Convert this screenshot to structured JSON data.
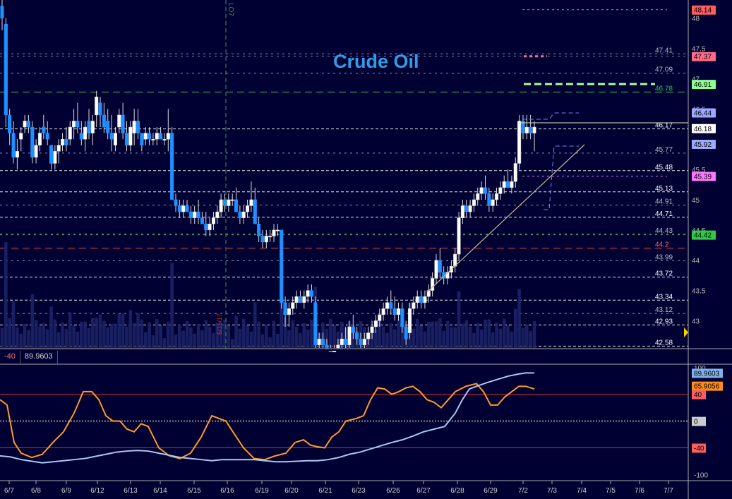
{
  "chart_data": {
    "type": "candlestick",
    "title": "Crude Oil",
    "marker_label": "LO7",
    "date_marker_label": "6/15/17",
    "x_labels": [
      "6/7",
      "6/8",
      "6/9",
      "6/12",
      "6/13",
      "6/14",
      "6/15",
      "6/16",
      "6/19",
      "6/20",
      "6/21",
      "6/23",
      "6/26",
      "6/27",
      "6/28",
      "6/29",
      "7/2",
      "7/3",
      "7/4",
      "7/5",
      "7/6",
      "7/7"
    ],
    "price_axis_ticks": [
      "48",
      "47.5",
      "47",
      "46.5",
      "45.5",
      "45",
      "44.5",
      "44",
      "43.5",
      "43"
    ],
    "price_level_labels": [
      "47.41",
      "47.09",
      "46.78",
      "46.17",
      "45.77",
      "45.48",
      "45.13",
      "44.91",
      "44.71",
      "44.43",
      "44.2",
      "43.99",
      "43.72",
      "43.34",
      "43.12",
      "42.93",
      "42.58"
    ],
    "price_badges": [
      {
        "value": "48.14",
        "color": "#ff5c5c"
      },
      {
        "value": "47.37",
        "color": "#ff6b8a"
      },
      {
        "value": "46.91",
        "color": "#8fff8f"
      },
      {
        "value": "46.44",
        "color": "#9aa8ff"
      },
      {
        "value": "46.18",
        "color": "#ffffff"
      },
      {
        "value": "45.92",
        "color": "#9aa8ff"
      },
      {
        "value": "45.39",
        "color": "#ff77ff"
      },
      {
        "value": "44.42",
        "color": "#2ecc40"
      }
    ],
    "ohlc": [
      [
        48.2,
        48.3,
        47.8,
        48.0
      ],
      [
        47.9,
        48.0,
        46.2,
        46.4
      ],
      [
        46.4,
        46.5,
        45.9,
        46.1
      ],
      [
        46.1,
        46.3,
        45.6,
        45.7
      ],
      [
        45.7,
        46.0,
        45.5,
        45.8
      ],
      [
        46.0,
        46.2,
        45.8,
        46.1
      ],
      [
        46.2,
        46.4,
        46.1,
        46.3
      ],
      [
        46.3,
        46.4,
        46.1,
        46.2
      ],
      [
        46.2,
        46.3,
        45.6,
        45.7
      ],
      [
        45.7,
        46.0,
        45.6,
        45.9
      ],
      [
        45.9,
        46.2,
        45.8,
        46.1
      ],
      [
        46.2,
        46.4,
        46.0,
        46.1
      ],
      [
        46.1,
        46.3,
        45.9,
        46.0
      ],
      [
        45.9,
        45.9,
        45.5,
        45.6
      ],
      [
        45.6,
        45.9,
        45.5,
        45.8
      ],
      [
        45.8,
        46.0,
        45.6,
        45.9
      ],
      [
        45.9,
        46.1,
        45.8,
        46.0
      ],
      [
        46.0,
        46.2,
        45.8,
        45.9
      ],
      [
        46.0,
        46.3,
        45.9,
        46.2
      ],
      [
        46.2,
        46.5,
        46.0,
        46.3
      ],
      [
        46.3,
        46.6,
        46.1,
        46.2
      ],
      [
        46.1,
        46.3,
        45.9,
        46.0
      ],
      [
        46.0,
        46.3,
        45.8,
        46.2
      ],
      [
        46.3,
        46.5,
        46.0,
        46.1
      ],
      [
        46.1,
        46.4,
        45.9,
        46.3
      ],
      [
        46.4,
        46.8,
        46.2,
        46.7
      ],
      [
        46.6,
        46.7,
        46.2,
        46.4
      ],
      [
        46.4,
        46.6,
        46.1,
        46.2
      ],
      [
        46.3,
        46.5,
        46.0,
        46.1
      ],
      [
        46.1,
        46.4,
        45.8,
        46.0
      ],
      [
        45.9,
        46.2,
        45.8,
        46.1
      ],
      [
        46.2,
        46.5,
        46.1,
        46.4
      ],
      [
        46.4,
        46.6,
        46.0,
        46.1
      ],
      [
        46.1,
        46.3,
        45.8,
        45.9
      ],
      [
        45.9,
        46.3,
        45.8,
        46.2
      ],
      [
        46.1,
        46.5,
        45.9,
        46.3
      ],
      [
        46.3,
        46.5,
        46.0,
        46.1
      ],
      [
        46.1,
        46.1,
        45.8,
        45.9
      ],
      [
        46.0,
        46.2,
        45.9,
        46.1
      ],
      [
        46.1,
        46.2,
        45.9,
        46.0
      ],
      [
        46.0,
        46.1,
        45.9,
        46.0
      ],
      [
        46.0,
        46.2,
        45.9,
        46.1
      ],
      [
        46.1,
        46.2,
        46.0,
        46.0
      ],
      [
        46.0,
        46.1,
        45.9,
        46.0
      ],
      [
        46.0,
        46.5,
        45.8,
        46.1
      ],
      [
        46.1,
        46.2,
        45.0,
        45.0
      ],
      [
        45.0,
        45.1,
        44.8,
        44.9
      ],
      [
        44.9,
        45.0,
        44.7,
        44.8
      ],
      [
        44.8,
        45.0,
        44.7,
        44.9
      ],
      [
        44.9,
        45.0,
        44.8,
        44.8
      ],
      [
        44.8,
        44.9,
        44.6,
        44.7
      ],
      [
        44.7,
        44.9,
        44.6,
        44.8
      ],
      [
        44.8,
        45.0,
        44.6,
        44.7
      ],
      [
        44.7,
        44.8,
        44.6,
        44.6
      ],
      [
        44.6,
        44.8,
        44.4,
        44.5
      ],
      [
        44.5,
        44.7,
        44.4,
        44.6
      ],
      [
        44.6,
        44.8,
        44.5,
        44.7
      ],
      [
        44.7,
        44.9,
        44.6,
        44.8
      ],
      [
        44.8,
        45.1,
        44.7,
        45.0
      ],
      [
        45.0,
        45.1,
        44.8,
        44.9
      ],
      [
        44.9,
        45.1,
        44.8,
        45.0
      ],
      [
        45.0,
        45.1,
        44.9,
        45.0
      ],
      [
        45.0,
        45.2,
        44.8,
        44.8
      ],
      [
        44.8,
        44.9,
        44.6,
        44.7
      ],
      [
        44.7,
        44.9,
        44.6,
        44.8
      ],
      [
        44.8,
        45.0,
        44.7,
        44.9
      ],
      [
        44.9,
        45.3,
        44.8,
        45.0
      ],
      [
        45.0,
        45.2,
        44.6,
        44.6
      ],
      [
        44.6,
        44.7,
        44.3,
        44.4
      ],
      [
        44.4,
        44.5,
        44.2,
        44.3
      ],
      [
        44.3,
        44.5,
        44.2,
        44.4
      ],
      [
        44.4,
        44.5,
        44.3,
        44.4
      ],
      [
        44.4,
        44.6,
        44.3,
        44.5
      ],
      [
        44.5,
        44.6,
        44.4,
        44.5
      ],
      [
        44.5,
        44.5,
        43.2,
        43.3
      ],
      [
        43.3,
        43.4,
        42.9,
        43.1
      ],
      [
        43.1,
        43.3,
        42.9,
        43.2
      ],
      [
        43.2,
        43.4,
        43.1,
        43.3
      ],
      [
        43.3,
        43.5,
        43.2,
        43.4
      ],
      [
        43.4,
        43.5,
        43.3,
        43.3
      ],
      [
        43.3,
        43.5,
        43.2,
        43.4
      ],
      [
        43.4,
        43.6,
        43.3,
        43.5
      ],
      [
        43.5,
        43.6,
        43.3,
        43.4
      ],
      [
        43.3,
        43.4,
        42.5,
        42.6
      ],
      [
        42.6,
        42.8,
        42.4,
        42.7
      ],
      [
        42.7,
        42.8,
        42.5,
        42.6
      ],
      [
        42.6,
        42.7,
        42.4,
        42.5
      ],
      [
        42.5,
        42.6,
        42.3,
        42.4
      ],
      [
        42.4,
        42.6,
        42.3,
        42.5
      ],
      [
        42.5,
        42.7,
        42.4,
        42.6
      ],
      [
        42.6,
        42.8,
        42.5,
        42.7
      ],
      [
        42.7,
        42.9,
        42.5,
        42.6
      ],
      [
        42.6,
        43.0,
        42.5,
        42.9
      ],
      [
        42.9,
        43.1,
        42.7,
        42.8
      ],
      [
        42.8,
        42.9,
        42.6,
        42.7
      ],
      [
        42.7,
        42.8,
        42.5,
        42.6
      ],
      [
        42.6,
        42.8,
        42.5,
        42.7
      ],
      [
        42.7,
        42.9,
        42.6,
        42.8
      ],
      [
        42.8,
        43.0,
        42.7,
        42.9
      ],
      [
        42.9,
        43.1,
        42.8,
        43.0
      ],
      [
        43.0,
        43.2,
        42.9,
        43.1
      ],
      [
        43.1,
        43.3,
        43.0,
        43.2
      ],
      [
        43.2,
        43.4,
        43.1,
        43.3
      ],
      [
        43.3,
        43.5,
        43.1,
        43.2
      ],
      [
        43.2,
        43.4,
        43.0,
        43.1
      ],
      [
        43.1,
        43.3,
        43.0,
        43.2
      ],
      [
        43.2,
        43.3,
        42.8,
        42.9
      ],
      [
        42.9,
        43.0,
        42.6,
        42.7
      ],
      [
        42.8,
        43.3,
        42.7,
        43.2
      ],
      [
        43.2,
        43.4,
        43.1,
        43.3
      ],
      [
        43.3,
        43.5,
        43.2,
        43.4
      ],
      [
        43.4,
        43.5,
        43.2,
        43.3
      ],
      [
        43.3,
        43.5,
        43.2,
        43.4
      ],
      [
        43.4,
        43.6,
        43.3,
        43.5
      ],
      [
        43.5,
        43.8,
        43.4,
        43.7
      ],
      [
        43.7,
        44.1,
        43.6,
        44.0
      ],
      [
        44.0,
        44.2,
        43.7,
        43.8
      ],
      [
        43.8,
        43.9,
        43.6,
        43.7
      ],
      [
        43.7,
        43.9,
        43.6,
        43.8
      ],
      [
        43.8,
        44.0,
        43.7,
        43.9
      ],
      [
        43.9,
        44.2,
        43.8,
        44.1
      ],
      [
        44.1,
        44.8,
        44.0,
        44.7
      ],
      [
        44.7,
        45.0,
        44.6,
        44.9
      ],
      [
        44.9,
        45.0,
        44.7,
        44.8
      ],
      [
        44.8,
        45.0,
        44.7,
        44.9
      ],
      [
        44.9,
        45.1,
        44.8,
        45.0
      ],
      [
        45.0,
        45.2,
        44.9,
        45.1
      ],
      [
        45.1,
        45.3,
        45.0,
        45.2
      ],
      [
        45.2,
        45.4,
        45.0,
        45.1
      ],
      [
        45.1,
        45.2,
        44.8,
        44.9
      ],
      [
        44.9,
        45.1,
        44.8,
        45.0
      ],
      [
        45.0,
        45.2,
        44.9,
        45.1
      ],
      [
        45.1,
        45.3,
        45.0,
        45.2
      ],
      [
        45.2,
        45.4,
        45.1,
        45.3
      ],
      [
        45.3,
        45.5,
        45.2,
        45.2
      ],
      [
        45.2,
        45.4,
        45.1,
        45.3
      ],
      [
        45.3,
        45.7,
        45.2,
        45.6
      ],
      [
        45.6,
        46.4,
        45.5,
        46.3
      ],
      [
        46.3,
        46.4,
        46.0,
        46.1
      ],
      [
        46.1,
        46.4,
        46.0,
        46.2
      ],
      [
        46.2,
        46.4,
        46.0,
        46.1
      ],
      [
        46.1,
        46.3,
        45.8,
        46.2
      ]
    ],
    "oscillator": {
      "header_left": "-40",
      "header_value": "89.9603",
      "axis_ticks": [
        "100",
        "50",
        "0",
        "-50",
        "-100"
      ],
      "levels": [
        50,
        0,
        -50
      ],
      "badges": [
        {
          "value": "89.9603",
          "color": "#7fb2e8"
        },
        {
          "value": "65.9056",
          "color": "#ff8c1a"
        },
        {
          "value": "40",
          "color": "#ff5c5c"
        },
        {
          "value": "0",
          "color": "#cccccc"
        },
        {
          "value": "-40",
          "color": "#ff5c5c"
        }
      ],
      "fast_line": [
        [
          0,
          40
        ],
        [
          10,
          30
        ],
        [
          20,
          -40
        ],
        [
          30,
          -60
        ],
        [
          45,
          -68
        ],
        [
          60,
          -62
        ],
        [
          75,
          -40
        ],
        [
          90,
          -20
        ],
        [
          105,
          15
        ],
        [
          118,
          55
        ],
        [
          130,
          55
        ],
        [
          140,
          40
        ],
        [
          150,
          10
        ],
        [
          160,
          0
        ],
        [
          170,
          0
        ],
        [
          180,
          -15
        ],
        [
          190,
          -20
        ],
        [
          200,
          -5
        ],
        [
          210,
          -10
        ],
        [
          225,
          -50
        ],
        [
          240,
          -65
        ],
        [
          255,
          -70
        ],
        [
          270,
          -60
        ],
        [
          285,
          -30
        ],
        [
          300,
          10
        ],
        [
          310,
          5
        ],
        [
          320,
          0
        ],
        [
          330,
          -20
        ],
        [
          345,
          -50
        ],
        [
          360,
          -70
        ],
        [
          375,
          -72
        ],
        [
          390,
          -65
        ],
        [
          405,
          -60
        ],
        [
          418,
          -40
        ],
        [
          430,
          -35
        ],
        [
          440,
          -45
        ],
        [
          450,
          -48
        ],
        [
          460,
          -50
        ],
        [
          470,
          -30
        ],
        [
          480,
          -20
        ],
        [
          490,
          0
        ],
        [
          505,
          5
        ],
        [
          515,
          10
        ],
        [
          525,
          40
        ],
        [
          535,
          62
        ],
        [
          545,
          60
        ],
        [
          555,
          50
        ],
        [
          565,
          55
        ],
        [
          575,
          62
        ],
        [
          585,
          65
        ],
        [
          595,
          55
        ],
        [
          605,
          40
        ],
        [
          615,
          35
        ],
        [
          625,
          25
        ],
        [
          635,
          40
        ],
        [
          645,
          55
        ],
        [
          660,
          65
        ],
        [
          675,
          70
        ],
        [
          685,
          55
        ],
        [
          695,
          30
        ],
        [
          705,
          30
        ],
        [
          715,
          45
        ],
        [
          725,
          55
        ],
        [
          735,
          65
        ],
        [
          745,
          65
        ],
        [
          757,
          60
        ]
      ],
      "slow_line": [
        [
          0,
          -65
        ],
        [
          15,
          -67
        ],
        [
          30,
          -72
        ],
        [
          45,
          -75
        ],
        [
          60,
          -78
        ],
        [
          75,
          -76
        ],
        [
          90,
          -74
        ],
        [
          105,
          -72
        ],
        [
          120,
          -70
        ],
        [
          135,
          -66
        ],
        [
          150,
          -62
        ],
        [
          165,
          -58
        ],
        [
          180,
          -56
        ],
        [
          195,
          -55
        ],
        [
          210,
          -56
        ],
        [
          225,
          -60
        ],
        [
          240,
          -64
        ],
        [
          255,
          -68
        ],
        [
          270,
          -70
        ],
        [
          285,
          -72
        ],
        [
          300,
          -74
        ],
        [
          315,
          -72
        ],
        [
          330,
          -72
        ],
        [
          345,
          -72
        ],
        [
          360,
          -72
        ],
        [
          375,
          -74
        ],
        [
          390,
          -76
        ],
        [
          405,
          -76
        ],
        [
          420,
          -75
        ],
        [
          435,
          -74
        ],
        [
          450,
          -74
        ],
        [
          465,
          -72
        ],
        [
          480,
          -68
        ],
        [
          495,
          -62
        ],
        [
          510,
          -58
        ],
        [
          525,
          -52
        ],
        [
          540,
          -46
        ],
        [
          555,
          -40
        ],
        [
          570,
          -35
        ],
        [
          585,
          -28
        ],
        [
          600,
          -20
        ],
        [
          615,
          -15
        ],
        [
          630,
          -10
        ],
        [
          645,
          15
        ],
        [
          655,
          40
        ],
        [
          665,
          60
        ],
        [
          675,
          65
        ],
        [
          690,
          72
        ],
        [
          705,
          78
        ],
        [
          720,
          84
        ],
        [
          735,
          88
        ],
        [
          745,
          90
        ],
        [
          757,
          90
        ]
      ]
    }
  }
}
